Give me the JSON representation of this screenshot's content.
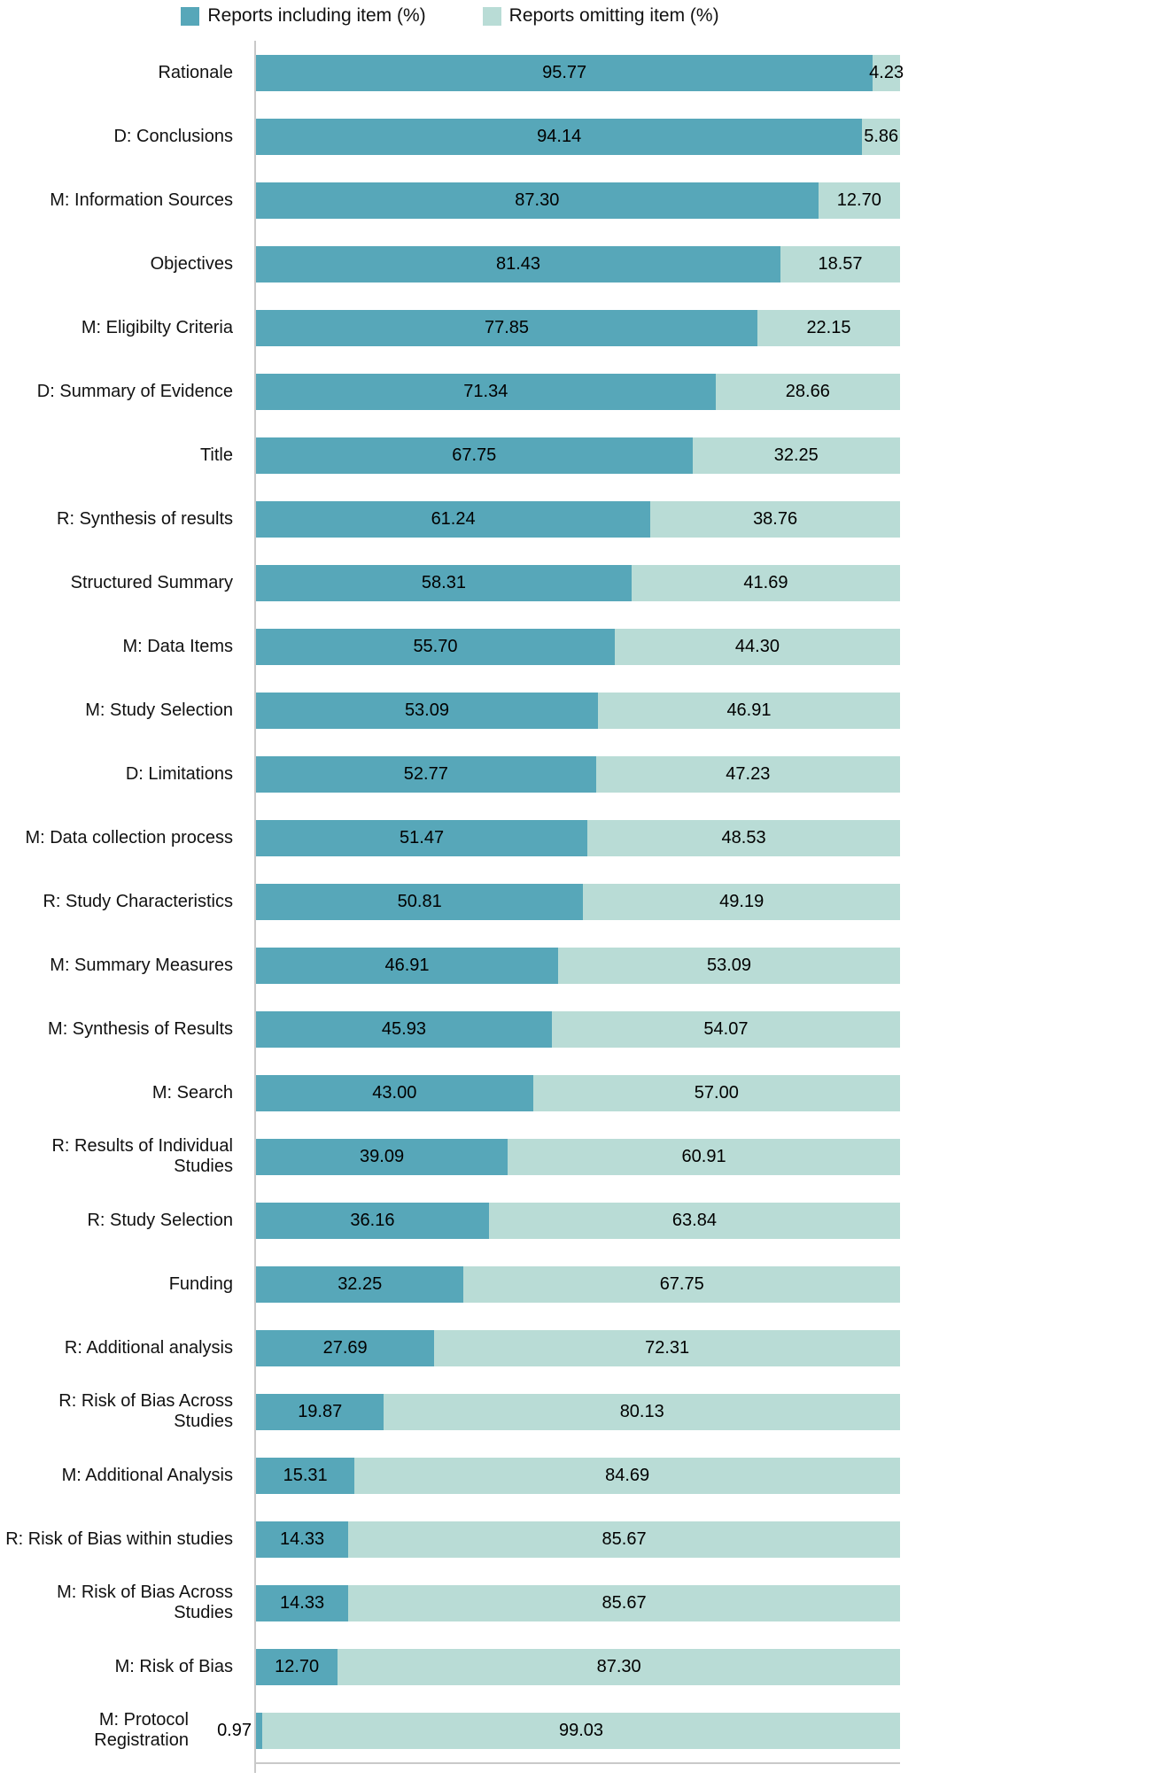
{
  "legend": [
    {
      "key": "including",
      "label": "Reports including item (%)"
    },
    {
      "key": "omitting",
      "label": "Reports omitting item (%)"
    }
  ],
  "colors": {
    "including": "#57a7b9",
    "omitting": "#b9dcd6",
    "axis": "#c9c9c9",
    "value_text": "#000000"
  },
  "chart_data": {
    "type": "bar",
    "orientation": "horizontal",
    "stacked": true,
    "xlim": [
      0,
      100
    ],
    "grid": false,
    "legend_position": "top",
    "title": "",
    "xlabel": "",
    "ylabel": "",
    "value_label_format": "two-decimals",
    "categories": [
      "Rationale",
      "D: Conclusions",
      "M: Information Sources",
      "Objectives",
      "M: Eligibilty Criteria",
      "D: Summary of Evidence",
      "Title",
      "R: Synthesis of results",
      "Structured Summary",
      "M: Data Items",
      "M: Study Selection",
      "D: Limitations",
      "M: Data collection process",
      "R: Study Characteristics",
      "M: Summary Measures",
      "M: Synthesis of Results",
      "M: Search",
      "R: Results of Individual Studies",
      "R: Study Selection",
      "Funding",
      "R: Additional analysis",
      "R: Risk of Bias Across Studies",
      "M: Additional Analysis",
      "R: Risk of Bias within studies",
      "M: Risk of Bias Across Studies",
      "M: Risk of Bias",
      "M: Protocol Registration"
    ],
    "series": [
      {
        "name": "Reports including item (%)",
        "color": "#57a7b9",
        "values": [
          95.77,
          94.14,
          87.3,
          81.43,
          77.85,
          71.34,
          67.75,
          61.24,
          58.31,
          55.7,
          53.09,
          52.77,
          51.47,
          50.81,
          46.91,
          45.93,
          43.0,
          39.09,
          36.16,
          32.25,
          27.69,
          19.87,
          15.31,
          14.33,
          14.33,
          12.7,
          0.97
        ]
      },
      {
        "name": "Reports omitting item (%)",
        "color": "#b9dcd6",
        "values": [
          4.23,
          5.86,
          12.7,
          18.57,
          22.15,
          28.66,
          32.25,
          38.76,
          41.69,
          44.3,
          46.91,
          47.23,
          48.53,
          49.19,
          53.09,
          54.07,
          57.0,
          60.91,
          63.84,
          67.75,
          72.31,
          80.13,
          84.69,
          85.67,
          85.67,
          87.3,
          99.03
        ]
      }
    ]
  }
}
